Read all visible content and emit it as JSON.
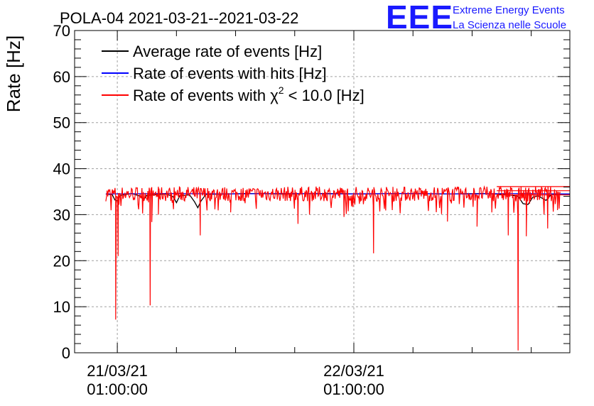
{
  "header": {
    "title": "POLA-04 2021-03-21--2021-03-22",
    "logo": "EEE",
    "brand_line1": "Extreme Energy Events",
    "brand_line2": "La Scienza nelle Scuole"
  },
  "chart_data": {
    "type": "line",
    "title": "POLA-04 2021-03-21--2021-03-22",
    "xlabel": "",
    "ylabel": "Rate [Hz]",
    "ylim": [
      0,
      70
    ],
    "yticks": [
      0,
      10,
      20,
      30,
      40,
      50,
      60,
      70
    ],
    "xlim": [
      "2021-03-20 20:40:00",
      "2021-03-22 22:55:00"
    ],
    "xticks": [
      {
        "time": "2021-03-21 01:00:00",
        "date": "21/03/21",
        "clock": "01:00:00"
      },
      {
        "time": "2021-03-22 01:00:00",
        "date": "22/03/21",
        "clock": "01:00:00"
      }
    ],
    "grid": true,
    "legend_position": "top-left",
    "series": [
      {
        "name": "Average rate of events [Hz]",
        "color": "#000000",
        "points": [
          [
            "2021-03-20 23:50",
            34.5
          ],
          [
            "2021-03-21 00:10",
            34.4
          ],
          [
            "2021-03-21 00:30",
            34.3
          ],
          [
            "2021-03-21 00:45",
            33.2
          ],
          [
            "2021-03-21 01:00",
            33.0
          ],
          [
            "2021-03-21 01:20",
            34.2
          ],
          [
            "2021-03-21 02:30",
            34.6
          ],
          [
            "2021-03-21 03:20",
            34.0
          ],
          [
            "2021-03-21 03:40",
            33.2
          ],
          [
            "2021-03-21 04:00",
            34.2
          ],
          [
            "2021-03-21 06:00",
            34.5
          ],
          [
            "2021-03-21 06:40",
            33.9
          ],
          [
            "2021-03-21 07:00",
            32.6
          ],
          [
            "2021-03-21 07:20",
            34.1
          ],
          [
            "2021-03-21 08:20",
            34.3
          ],
          [
            "2021-03-21 08:50",
            32.8
          ],
          [
            "2021-03-21 09:10",
            31.5
          ],
          [
            "2021-03-21 09:30",
            33.0
          ],
          [
            "2021-03-21 10:00",
            34.4
          ],
          [
            "2021-03-21 14:00",
            34.6
          ],
          [
            "2021-03-21 18:00",
            34.5
          ],
          [
            "2021-03-21 22:00",
            34.6
          ],
          [
            "2021-03-22 02:00",
            34.5
          ],
          [
            "2021-03-22 06:00",
            34.6
          ],
          [
            "2021-03-22 10:00",
            34.5
          ],
          [
            "2021-03-22 14:00",
            34.6
          ],
          [
            "2021-03-22 16:30",
            34.4
          ],
          [
            "2021-03-22 17:40",
            34.0
          ],
          [
            "2021-03-22 18:10",
            32.4
          ],
          [
            "2021-03-22 18:40",
            32.2
          ],
          [
            "2021-03-22 19:10",
            33.8
          ],
          [
            "2021-03-22 19:40",
            34.1
          ],
          [
            "2021-03-22 20:30",
            33.1
          ],
          [
            "2021-03-22 21:00",
            34.3
          ],
          [
            "2021-03-22 22:00",
            34.5
          ],
          [
            "2021-03-22 22:55",
            34.5
          ]
        ]
      },
      {
        "name": "Rate of events with hits [Hz]",
        "color": "#0000ff",
        "points": [
          [
            "2021-03-20 23:50",
            34.5
          ],
          [
            "2021-03-21 06:00",
            34.6
          ],
          [
            "2021-03-21 12:00",
            34.5
          ],
          [
            "2021-03-21 18:00",
            34.6
          ],
          [
            "2021-03-22 00:00",
            34.5
          ],
          [
            "2021-03-22 06:00",
            34.6
          ],
          [
            "2021-03-22 12:00",
            34.5
          ],
          [
            "2021-03-22 18:00",
            34.6
          ],
          [
            "2021-03-22 22:55",
            34.5
          ]
        ]
      },
      {
        "name": "Rate of events with χ² < 10.0 [Hz]",
        "color": "#ff0000",
        "base": 34.5,
        "spread": 1.6,
        "start": "2021-03-20 23:50",
        "end": "2021-03-22 22:00",
        "dips": [
          [
            "2021-03-21 00:50",
            7.2
          ],
          [
            "2021-03-21 01:05",
            21.0
          ],
          [
            "2021-03-21 04:20",
            10.3
          ],
          [
            "2021-03-21 04:30",
            28.4
          ],
          [
            "2021-03-21 09:25",
            25.5
          ],
          [
            "2021-03-21 05:10",
            30.0
          ],
          [
            "2021-03-21 12:30",
            30.5
          ],
          [
            "2021-03-21 19:20",
            28.0
          ],
          [
            "2021-03-22 00:00",
            29.5
          ],
          [
            "2021-03-22 03:00",
            21.6
          ],
          [
            "2021-03-22 10:30",
            28.5
          ],
          [
            "2021-03-22 13:30",
            27.4
          ],
          [
            "2021-03-22 16:40",
            25.5
          ],
          [
            "2021-03-22 17:40",
            0.5
          ],
          [
            "2021-03-22 18:30",
            25.3
          ],
          [
            "2021-03-22 20:40",
            27.0
          ],
          [
            "2021-03-22 15:00",
            30.5
          ],
          [
            "2021-03-22 21:40",
            31.0
          ]
        ]
      }
    ],
    "legend": [
      {
        "label": "Average rate of events [Hz]",
        "color": "#000000"
      },
      {
        "label": "Rate of events with hits [Hz]",
        "color": "#0000ff"
      },
      {
        "label": "Rate of events with χ",
        "sup": "2",
        "suffix": " < 10.0 [Hz]",
        "color": "#ff0000"
      }
    ]
  }
}
